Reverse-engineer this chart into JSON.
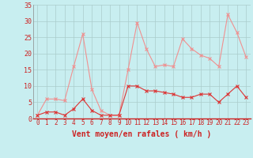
{
  "x": [
    0,
    1,
    2,
    3,
    4,
    5,
    6,
    7,
    8,
    9,
    10,
    11,
    12,
    13,
    14,
    15,
    16,
    17,
    18,
    19,
    20,
    21,
    22,
    23
  ],
  "wind_avg": [
    1,
    2,
    2,
    1,
    3,
    6,
    2.5,
    1,
    1,
    1,
    10,
    10,
    8.5,
    8.5,
    8,
    7.5,
    6.5,
    6.5,
    7.5,
    7.5,
    5,
    7.5,
    10,
    6.5
  ],
  "wind_gust": [
    1,
    6,
    6,
    5.5,
    16,
    26,
    9,
    2.5,
    1,
    1,
    15,
    29.5,
    21.5,
    16,
    16.5,
    16,
    24.5,
    21.5,
    19.5,
    18.5,
    16,
    32,
    26.5,
    19
  ],
  "avg_color": "#dd3333",
  "gust_color": "#f09090",
  "bg_color": "#c8eef0",
  "grid_color": "#aacccc",
  "axis_label_color": "#cc2222",
  "tick_color": "#cc2222",
  "title": "Vent moyen/en rafales ( km/h )",
  "ylim": [
    0,
    35
  ],
  "yticks": [
    0,
    5,
    10,
    15,
    20,
    25,
    30,
    35
  ],
  "xlim": [
    -0.5,
    23.5
  ],
  "xticks": [
    0,
    1,
    2,
    3,
    4,
    5,
    6,
    7,
    8,
    9,
    10,
    11,
    12,
    13,
    14,
    15,
    16,
    17,
    18,
    19,
    20,
    21,
    22,
    23
  ]
}
